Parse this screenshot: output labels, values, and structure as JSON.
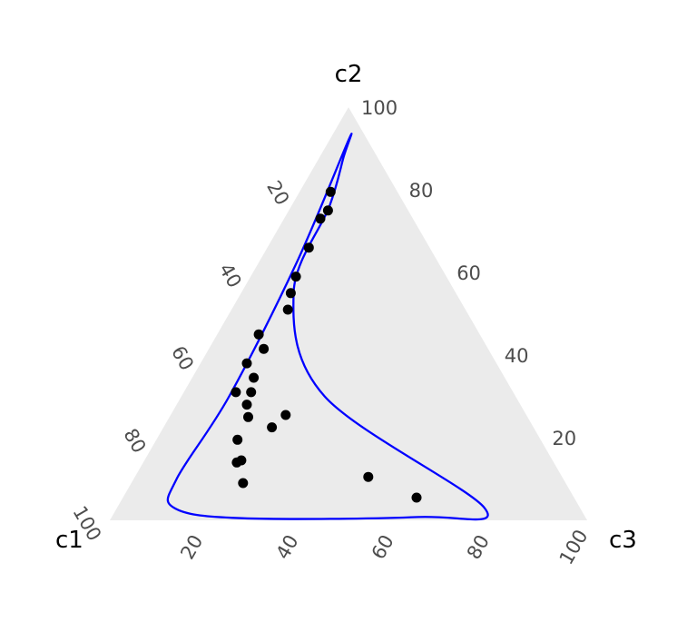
{
  "chart_data": {
    "type": "scatter",
    "subtype": "ternary",
    "corner_labels": {
      "left": "c1",
      "top": "c2",
      "right": "c3"
    },
    "tick_values": [
      20,
      40,
      60,
      80,
      100
    ],
    "tick_labels": {
      "c1": [
        "20",
        "40",
        "60",
        "80",
        "100"
      ],
      "c2": [
        "20",
        "40",
        "60",
        "80",
        "100"
      ],
      "c3": [
        "20",
        "40",
        "60",
        "80",
        "100"
      ]
    },
    "grid": false,
    "legend": "none",
    "colors": {
      "panel": "#ebebeb",
      "point": "#000000",
      "contour": "#0000ff",
      "tick_text": "#4d4d4d"
    },
    "points": [
      {
        "c1": 14.0,
        "c2": 79.5,
        "c3": 6.5
      },
      {
        "c1": 16.8,
        "c2": 75.0,
        "c3": 8.2
      },
      {
        "c1": 19.4,
        "c2": 73.0,
        "c3": 7.6
      },
      {
        "c1": 25.3,
        "c2": 66.0,
        "c3": 8.7
      },
      {
        "c1": 31.5,
        "c2": 59.0,
        "c3": 9.5
      },
      {
        "c1": 34.6,
        "c2": 55.0,
        "c3": 10.4
      },
      {
        "c1": 37.2,
        "c2": 51.0,
        "c3": 11.8
      },
      {
        "c1": 46.3,
        "c2": 45.0,
        "c3": 8.7
      },
      {
        "c1": 47.0,
        "c2": 41.5,
        "c3": 11.5
      },
      {
        "c1": 52.3,
        "c2": 38.0,
        "c3": 9.7
      },
      {
        "c1": 52.6,
        "c2": 34.5,
        "c3": 12.9
      },
      {
        "c1": 58.1,
        "c2": 31.0,
        "c3": 10.9
      },
      {
        "c1": 57.3,
        "c2": 28.0,
        "c3": 14.7
      },
      {
        "c1": 54.9,
        "c2": 31.0,
        "c3": 14.1
      },
      {
        "c1": 58.5,
        "c2": 25.0,
        "c3": 16.5
      },
      {
        "c1": 50.4,
        "c2": 25.5,
        "c3": 24.1
      },
      {
        "c1": 54.8,
        "c2": 22.5,
        "c3": 22.7
      },
      {
        "c1": 63.5,
        "c2": 19.5,
        "c3": 17.0
      },
      {
        "c1": 65.2,
        "c2": 14.5,
        "c3": 20.3
      },
      {
        "c1": 66.4,
        "c2": 14.0,
        "c3": 19.6
      },
      {
        "c1": 67.6,
        "c2": 9.0,
        "c3": 23.4
      },
      {
        "c1": 40.6,
        "c2": 10.5,
        "c3": 48.9
      },
      {
        "c1": 33.0,
        "c2": 5.5,
        "c3": 61.5
      }
    ],
    "contour": [
      {
        "c1": 4.0,
        "c2": 92.0,
        "c3": 4.0
      },
      {
        "c1": 30.0,
        "c2": 62.0,
        "c3": 8.0
      },
      {
        "c1": 60.0,
        "c2": 30.0,
        "c3": 10.0
      },
      {
        "c1": 81.0,
        "c2": 10.0,
        "c3": 9.0
      },
      {
        "c1": 85.0,
        "c2": 3.0,
        "c3": 12.0
      },
      {
        "c1": 72.0,
        "c2": 0.5,
        "c3": 27.5
      },
      {
        "c1": 35.0,
        "c2": 0.8,
        "c3": 64.2
      },
      {
        "c1": 20.0,
        "c2": 3.0,
        "c3": 77.0
      },
      {
        "c1": 40.0,
        "c2": 30.0,
        "c3": 30.0
      },
      {
        "c1": 34.0,
        "c2": 55.0,
        "c3": 11.0
      },
      {
        "c1": 16.0,
        "c2": 76.0,
        "c3": 8.0
      },
      {
        "c1": 7.0,
        "c2": 88.0,
        "c3": 5.0
      },
      {
        "c1": 4.0,
        "c2": 92.0,
        "c3": 4.0
      }
    ]
  }
}
